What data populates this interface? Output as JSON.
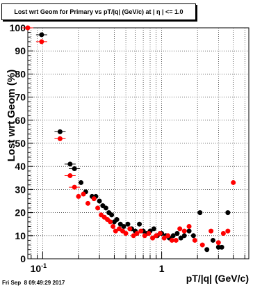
{
  "footer": "Fri Sep  8 09:49:29 2017",
  "chart_data": {
    "type": "scatter",
    "title": "Lost wrt Geom for Primary vs pT/|q| (GeV/c) at |  η  | <= 1.0",
    "xlabel": "pT/|q| (GeV/c)",
    "ylabel": "Lost wrt Geom (%)",
    "xscale": "log",
    "xlim": [
      0.075,
      5.4
    ],
    "ylim": [
      0,
      100
    ],
    "grid": true,
    "y_ticks": [
      0,
      10,
      20,
      30,
      40,
      50,
      60,
      70,
      80,
      90,
      100
    ],
    "y_tick_labels": [
      "0",
      "10",
      "20",
      "30",
      "40",
      "50",
      "60",
      "70",
      "80",
      "90",
      "100"
    ],
    "x_tick_labels": [
      {
        "value": 0.1,
        "label": "10^-1"
      },
      {
        "value": 1,
        "label": "1"
      }
    ],
    "series": [
      {
        "color": "#000000",
        "x": [
          0.098,
          0.14,
          0.17,
          0.185,
          0.21,
          0.23,
          0.26,
          0.28,
          0.3,
          0.32,
          0.34,
          0.36,
          0.38,
          0.4,
          0.42,
          0.45,
          0.48,
          0.52,
          0.56,
          0.6,
          0.65,
          0.7,
          0.75,
          0.8,
          0.86,
          0.92,
          1.0,
          1.08,
          1.16,
          1.25,
          1.35,
          1.45,
          1.55,
          1.7,
          1.85,
          2.1,
          2.4,
          2.7,
          3.0,
          3.2,
          3.6
        ],
        "y": [
          97,
          55,
          41,
          39,
          33,
          29,
          27,
          27,
          25,
          23,
          22,
          20,
          19,
          16,
          17,
          15,
          14,
          15,
          13,
          12,
          15,
          12,
          11,
          12,
          13,
          10,
          11,
          10,
          9,
          10,
          11,
          9,
          10,
          12,
          10,
          20,
          4,
          8,
          5,
          5,
          20
        ]
      },
      {
        "color": "#ff0000",
        "x": [
          0.075,
          0.098,
          0.14,
          0.17,
          0.185,
          0.2,
          0.22,
          0.24,
          0.27,
          0.29,
          0.31,
          0.33,
          0.35,
          0.37,
          0.39,
          0.41,
          0.44,
          0.47,
          0.5,
          0.54,
          0.58,
          0.62,
          0.67,
          0.72,
          0.78,
          0.84,
          0.9,
          0.97,
          1.05,
          1.13,
          1.22,
          1.32,
          1.42,
          1.55,
          1.7,
          1.9,
          2.2,
          2.6,
          3.0,
          3.3,
          3.6,
          4.0
        ],
        "y": [
          100,
          94,
          52,
          36,
          31,
          27,
          28,
          24,
          26,
          22,
          19,
          18,
          17,
          16,
          14,
          12,
          13,
          12,
          11,
          13,
          10,
          11,
          12,
          10,
          11,
          9,
          10,
          11,
          9,
          10,
          8,
          8,
          13,
          12,
          14,
          8,
          6,
          12,
          7,
          11,
          12,
          33
        ]
      }
    ]
  }
}
